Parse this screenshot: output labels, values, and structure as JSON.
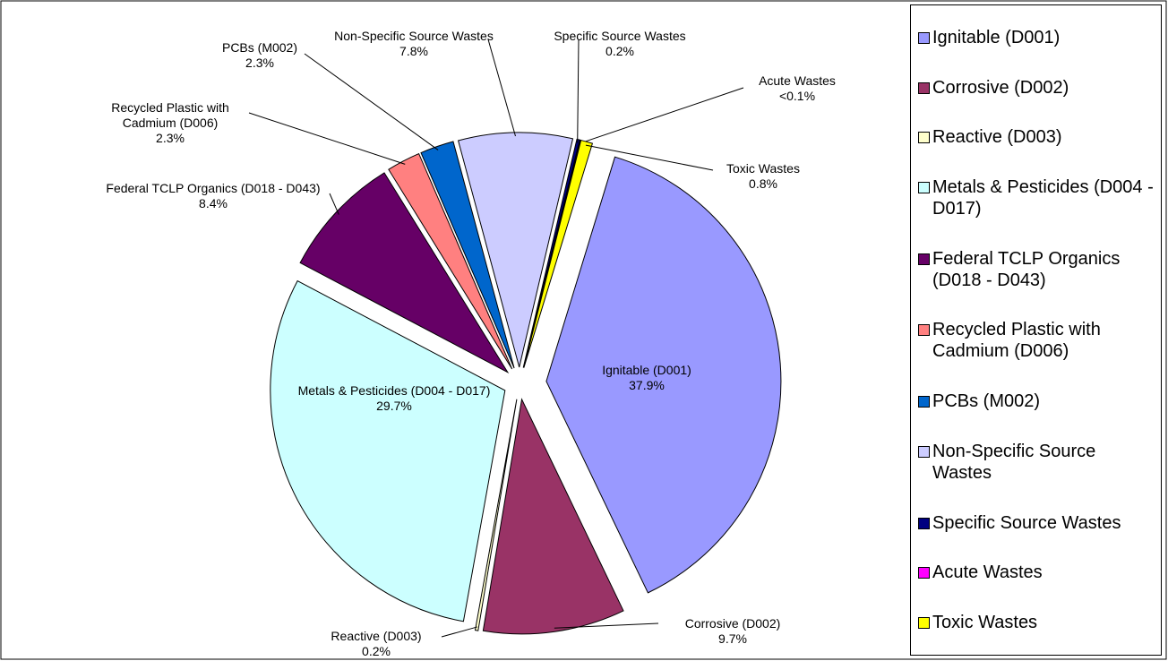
{
  "chart_data": {
    "type": "pie",
    "categories": [
      "Ignitable (D001)",
      "Corrosive (D002)",
      "Reactive (D003)",
      "Metals & Pesticides (D004 - D017)",
      "Federal TCLP Organics (D018 - D043)",
      "Recycled Plastic with Cadmium (D006)",
      "PCBs (M002)",
      "Non-Specific Source Wastes",
      "Specific Source Wastes",
      "Acute Wastes",
      "Toxic Wastes"
    ],
    "values": [
      37.9,
      9.7,
      0.2,
      29.7,
      8.4,
      2.3,
      2.3,
      7.8,
      0.2,
      0.05,
      0.8
    ],
    "value_labels": [
      "37.9%",
      "9.7%",
      "0.2%",
      "29.7%",
      "8.4%",
      "2.3%",
      "2.3%",
      "7.8%",
      "0.2%",
      "<0.1%",
      "0.8%"
    ],
    "colors": [
      "#9999ff",
      "#993366",
      "#ffffcc",
      "#ccffff",
      "#660066",
      "#ff8080",
      "#0066cc",
      "#ccccff",
      "#000080",
      "#ff00ff",
      "#ffff00"
    ],
    "legend": "right"
  }
}
